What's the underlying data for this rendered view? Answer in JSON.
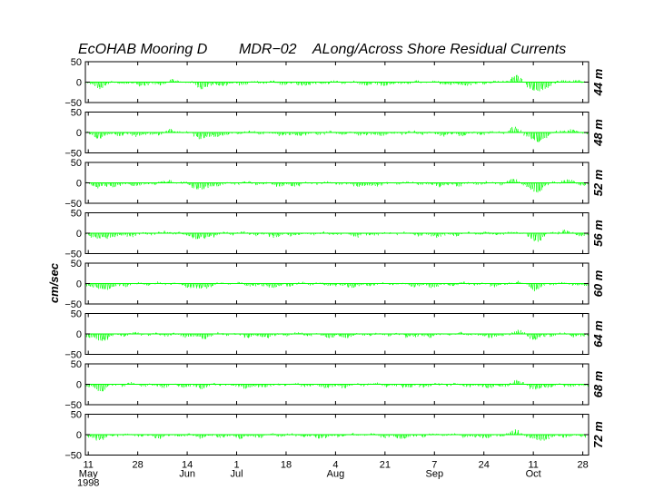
{
  "chart_data": {
    "type": "stick-plot",
    "title_parts": [
      "EcOHAB Mooring D",
      "MDR−02",
      "ALong/Across Shore Residual Currents"
    ],
    "ylabel": "cm/sec",
    "ylim": [
      -50,
      50
    ],
    "yticks": [
      "50",
      "0",
      "−50"
    ],
    "series_color": "#00ff00",
    "depths": [
      "44 m",
      "48 m",
      "52 m",
      "56 m",
      "60 m",
      "64 m",
      "68 m",
      "72 m"
    ],
    "x_range_days": [
      0,
      173
    ],
    "x_ticks": [
      {
        "day": 1,
        "day_label": "11",
        "month_label": "May",
        "year_label": "1998"
      },
      {
        "day": 18,
        "day_label": "28",
        "month_label": "",
        "year_label": ""
      },
      {
        "day": 35,
        "day_label": "14",
        "month_label": "Jun",
        "year_label": ""
      },
      {
        "day": 52,
        "day_label": "1",
        "month_label": "Jul",
        "year_label": ""
      },
      {
        "day": 69,
        "day_label": "18",
        "month_label": "",
        "year_label": ""
      },
      {
        "day": 86,
        "day_label": "4",
        "month_label": "Aug",
        "year_label": ""
      },
      {
        "day": 103,
        "day_label": "21",
        "month_label": "",
        "year_label": ""
      },
      {
        "day": 120,
        "day_label": "7",
        "month_label": "Sep",
        "year_label": ""
      },
      {
        "day": 137,
        "day_label": "24",
        "month_label": "",
        "year_label": ""
      },
      {
        "day": 154,
        "day_label": "11",
        "month_label": "Oct",
        "year_label": ""
      },
      {
        "day": 171,
        "day_label": "28",
        "month_label": "",
        "year_label": ""
      }
    ],
    "events": [
      {
        "day": 148,
        "amp": 14
      },
      {
        "day": 155,
        "amp": -18
      },
      {
        "day": 40,
        "amp": -10
      },
      {
        "day": 30,
        "amp": 5
      },
      {
        "day": 165,
        "amp": 6
      },
      {
        "day": 5,
        "amp": -12
      }
    ]
  }
}
